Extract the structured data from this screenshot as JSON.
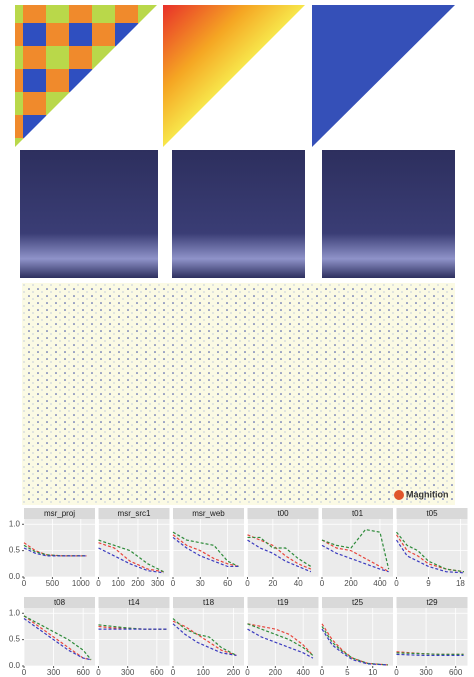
{
  "logo": "Magnition",
  "chart_data": {
    "type": "line",
    "ylim": [
      0,
      1.1
    ],
    "yticks": [
      {
        "value": 0,
        "label": "0.0"
      },
      {
        "value": 0.5,
        "label": "0.5"
      },
      {
        "value": 1,
        "label": "1.0"
      }
    ],
    "grid": true,
    "panels": [
      {
        "title": "msr_proj",
        "x": [
          0,
          200,
          400,
          700,
          1100
        ],
        "xlim": [
          0,
          1250
        ],
        "xticks": [
          0,
          500,
          1000
        ],
        "series": [
          {
            "color": "#e8453c",
            "values": [
              0.65,
              0.5,
              0.42,
              0.4,
              0.4
            ]
          },
          {
            "color": "#2e8b3a",
            "values": [
              0.6,
              0.48,
              0.42,
              0.4,
              0.4
            ]
          },
          {
            "color": "#3b3bbf",
            "values": [
              0.55,
              0.45,
              0.4,
              0.4,
              0.4
            ]
          }
        ]
      },
      {
        "title": "msr_src1",
        "x": [
          0,
          80,
          160,
          250,
          330
        ],
        "xlim": [
          0,
          360
        ],
        "xticks": [
          0,
          100,
          200,
          300
        ],
        "series": [
          {
            "color": "#e8453c",
            "values": [
              0.65,
              0.55,
              0.3,
              0.15,
              0.1
            ]
          },
          {
            "color": "#2e8b3a",
            "values": [
              0.7,
              0.6,
              0.5,
              0.25,
              0.1
            ]
          },
          {
            "color": "#3b3bbf",
            "values": [
              0.55,
              0.4,
              0.25,
              0.12,
              0.08
            ]
          }
        ]
      },
      {
        "title": "msr_web",
        "x": [
          0,
          15,
          30,
          45,
          60,
          72
        ],
        "xlim": [
          0,
          78
        ],
        "xticks": [
          0,
          30,
          60
        ],
        "series": [
          {
            "color": "#e8453c",
            "values": [
              0.8,
              0.6,
              0.5,
              0.35,
              0.25,
              0.2
            ]
          },
          {
            "color": "#2e8b3a",
            "values": [
              0.85,
              0.7,
              0.65,
              0.6,
              0.3,
              0.2
            ]
          },
          {
            "color": "#3b3bbf",
            "values": [
              0.75,
              0.55,
              0.4,
              0.3,
              0.2,
              0.2
            ]
          }
        ]
      },
      {
        "title": "t00",
        "x": [
          0,
          10,
          20,
          30,
          40,
          50
        ],
        "xlim": [
          0,
          56
        ],
        "xticks": [
          0,
          20,
          40
        ],
        "series": [
          {
            "color": "#e8453c",
            "values": [
              0.8,
              0.7,
              0.6,
              0.4,
              0.25,
              0.15
            ]
          },
          {
            "color": "#2e8b3a",
            "values": [
              0.75,
              0.75,
              0.55,
              0.55,
              0.35,
              0.2
            ]
          },
          {
            "color": "#3b3bbf",
            "values": [
              0.7,
              0.55,
              0.45,
              0.3,
              0.2,
              0.1
            ]
          }
        ]
      },
      {
        "title": "t01",
        "x": [
          0,
          100,
          200,
          300,
          400,
          460
        ],
        "xlim": [
          0,
          490
        ],
        "xticks": [
          0,
          200,
          400
        ],
        "series": [
          {
            "color": "#e8453c",
            "values": [
              0.7,
              0.55,
              0.5,
              0.35,
              0.2,
              0.1
            ]
          },
          {
            "color": "#2e8b3a",
            "values": [
              0.7,
              0.6,
              0.55,
              0.9,
              0.85,
              0.15
            ]
          },
          {
            "color": "#3b3bbf",
            "values": [
              0.6,
              0.45,
              0.35,
              0.25,
              0.15,
              0.1
            ]
          }
        ]
      },
      {
        "title": "t05",
        "x": [
          0,
          3,
          6,
          9,
          14,
          19
        ],
        "xlim": [
          0,
          20
        ],
        "xticks": [
          0,
          9,
          18
        ],
        "series": [
          {
            "color": "#e8453c",
            "values": [
              0.8,
              0.5,
              0.4,
              0.25,
              0.15,
              0.1
            ]
          },
          {
            "color": "#2e8b3a",
            "values": [
              0.85,
              0.6,
              0.5,
              0.3,
              0.15,
              0.1
            ]
          },
          {
            "color": "#3b3bbf",
            "values": [
              0.7,
              0.4,
              0.3,
              0.2,
              0.1,
              0.08
            ]
          }
        ]
      },
      {
        "title": "t08",
        "x": [
          0,
          150,
          300,
          450,
          600,
          680
        ],
        "xlim": [
          0,
          720
        ],
        "xticks": [
          0,
          300,
          600
        ],
        "series": [
          {
            "color": "#e8453c",
            "values": [
              0.95,
              0.75,
              0.55,
              0.35,
              0.15,
              0.12
            ]
          },
          {
            "color": "#2e8b3a",
            "values": [
              0.95,
              0.8,
              0.65,
              0.5,
              0.3,
              0.12
            ]
          },
          {
            "color": "#3b3bbf",
            "values": [
              0.9,
              0.7,
              0.5,
              0.3,
              0.15,
              0.12
            ]
          }
        ]
      },
      {
        "title": "t14",
        "x": [
          0,
          150,
          300,
          450,
          600,
          700
        ],
        "xlim": [
          0,
          730
        ],
        "xticks": [
          0,
          300,
          600
        ],
        "series": [
          {
            "color": "#e8453c",
            "values": [
              0.75,
              0.72,
              0.72,
              0.7,
              0.7,
              0.7
            ]
          },
          {
            "color": "#2e8b3a",
            "values": [
              0.78,
              0.75,
              0.72,
              0.7,
              0.7,
              0.7
            ]
          },
          {
            "color": "#3b3bbf",
            "values": [
              0.7,
              0.7,
              0.7,
              0.7,
              0.7,
              0.7
            ]
          }
        ]
      },
      {
        "title": "t18",
        "x": [
          0,
          40,
          80,
          120,
          160,
          210
        ],
        "xlim": [
          0,
          235
        ],
        "xticks": [
          0,
          100,
          200
        ],
        "series": [
          {
            "color": "#e8453c",
            "values": [
              0.85,
              0.75,
              0.6,
              0.45,
              0.3,
              0.2
            ]
          },
          {
            "color": "#2e8b3a",
            "values": [
              0.9,
              0.7,
              0.6,
              0.55,
              0.35,
              0.2
            ]
          },
          {
            "color": "#3b3bbf",
            "values": [
              0.8,
              0.6,
              0.45,
              0.35,
              0.25,
              0.2
            ]
          }
        ]
      },
      {
        "title": "t19",
        "x": [
          0,
          100,
          200,
          300,
          400,
          470
        ],
        "xlim": [
          0,
          510
        ],
        "xticks": [
          0,
          200,
          400
        ],
        "series": [
          {
            "color": "#e8453c",
            "values": [
              0.8,
              0.75,
              0.7,
              0.6,
              0.4,
              0.2
            ]
          },
          {
            "color": "#2e8b3a",
            "values": [
              0.8,
              0.7,
              0.6,
              0.5,
              0.35,
              0.2
            ]
          },
          {
            "color": "#3b3bbf",
            "values": [
              0.7,
              0.55,
              0.45,
              0.35,
              0.25,
              0.15
            ]
          }
        ]
      },
      {
        "title": "t25",
        "x": [
          0,
          2,
          4,
          6,
          9,
          13
        ],
        "xlim": [
          0,
          14
        ],
        "xticks": [
          0,
          5,
          10
        ],
        "series": [
          {
            "color": "#e8453c",
            "values": [
              0.8,
              0.5,
              0.3,
              0.15,
              0.05,
              0.02
            ]
          },
          {
            "color": "#2e8b3a",
            "values": [
              0.75,
              0.45,
              0.28,
              0.15,
              0.05,
              0.02
            ]
          },
          {
            "color": "#3b3bbf",
            "values": [
              0.7,
              0.4,
              0.25,
              0.12,
              0.04,
              0.02
            ]
          }
        ]
      },
      {
        "title": "t29",
        "x": [
          0,
          150,
          300,
          450,
          600,
          680
        ],
        "xlim": [
          0,
          720
        ],
        "xticks": [
          0,
          300,
          600
        ],
        "series": [
          {
            "color": "#e8453c",
            "values": [
              0.27,
              0.25,
              0.23,
              0.22,
              0.22,
              0.22
            ]
          },
          {
            "color": "#2e8b3a",
            "values": [
              0.25,
              0.24,
              0.23,
              0.22,
              0.22,
              0.22
            ]
          },
          {
            "color": "#3b3bbf",
            "values": [
              0.22,
              0.21,
              0.2,
              0.2,
              0.2,
              0.2
            ]
          }
        ]
      }
    ]
  }
}
